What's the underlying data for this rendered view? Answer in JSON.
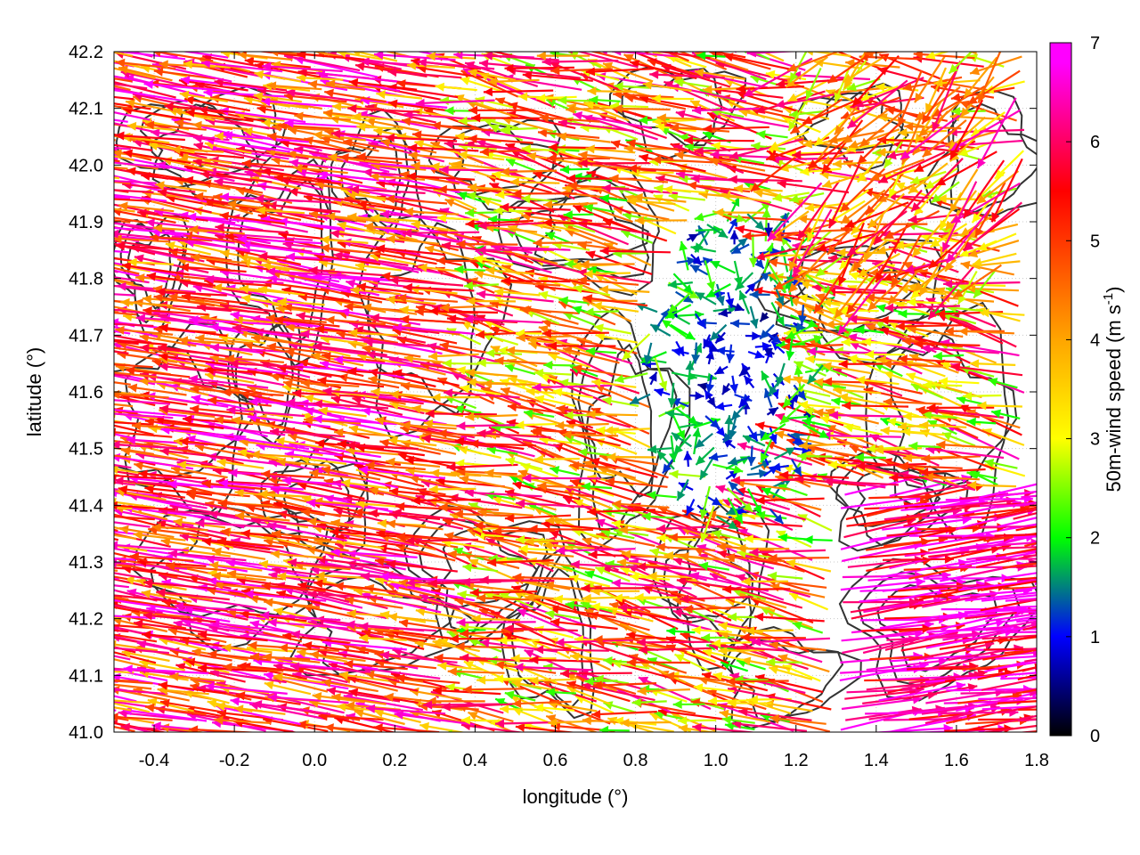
{
  "chart_data": {
    "type": "vector-field",
    "xlabel": "longitude (°)",
    "ylabel": "latitude (°)",
    "xlim": [
      -0.5,
      1.8
    ],
    "ylim": [
      41.0,
      42.2
    ],
    "xticks": [
      -0.4,
      -0.2,
      0.0,
      0.2,
      0.4,
      0.6,
      0.8,
      1.0,
      1.2,
      1.4,
      1.6,
      1.8
    ],
    "xtick_labels": [
      "-0.4",
      "-0.2",
      "0.0",
      "0.2",
      "0.4",
      "0.6",
      "0.8",
      "1.0",
      "1.2",
      "1.4",
      "1.6",
      "1.8"
    ],
    "yticks": [
      41.0,
      41.1,
      41.2,
      41.3,
      41.4,
      41.5,
      41.6,
      41.7,
      41.8,
      41.9,
      42.0,
      42.1,
      42.2
    ],
    "ytick_labels": [
      "41.0",
      "41.1",
      "41.2",
      "41.3",
      "41.4",
      "41.5",
      "41.6",
      "41.7",
      "41.8",
      "41.9",
      "42.0",
      "42.1",
      "42.2"
    ],
    "grid": true,
    "colorbar": {
      "label_main": "50m-wind speed (m s",
      "label_sup": "-1",
      "label_close": ")",
      "range": [
        0,
        7
      ],
      "ticks": [
        0,
        1,
        2,
        3,
        4,
        5,
        6,
        7
      ],
      "tick_labels": [
        "0",
        "1",
        "2",
        "3",
        "4",
        "5",
        "6",
        "7"
      ],
      "colors": [
        "#000000",
        "#0000ff",
        "#00ff00",
        "#ffff00",
        "#ffa500",
        "#ff0000",
        "#ff00ff"
      ],
      "color_stops": [
        0,
        1,
        2,
        3,
        4,
        5.5,
        6.8
      ]
    },
    "wind_field": {
      "description_regions": [
        {
          "region": "west",
          "lon": [
            -0.5,
            0.4
          ],
          "speed": [
            4,
            7
          ],
          "direction": "from east (westward arrows)"
        },
        {
          "region": "center",
          "lon": [
            0.4,
            0.8
          ],
          "speed": [
            3,
            6
          ],
          "direction": "westward"
        },
        {
          "region": "calm",
          "lon": [
            0.85,
            1.25
          ],
          "lat": [
            41.4,
            41.9
          ],
          "speed": [
            0.5,
            2.5
          ],
          "direction": "variable"
        },
        {
          "region": "southeast",
          "lon": [
            1.3,
            1.8
          ],
          "lat": [
            41.0,
            41.4
          ],
          "speed": [
            5,
            7
          ],
          "direction": "eastward"
        },
        {
          "region": "northeast",
          "lon": [
            1.2,
            1.8
          ],
          "lat": [
            41.8,
            42.2
          ],
          "speed": [
            3,
            6
          ],
          "direction": "variable"
        }
      ]
    },
    "contours": {
      "color": "#333333"
    }
  }
}
